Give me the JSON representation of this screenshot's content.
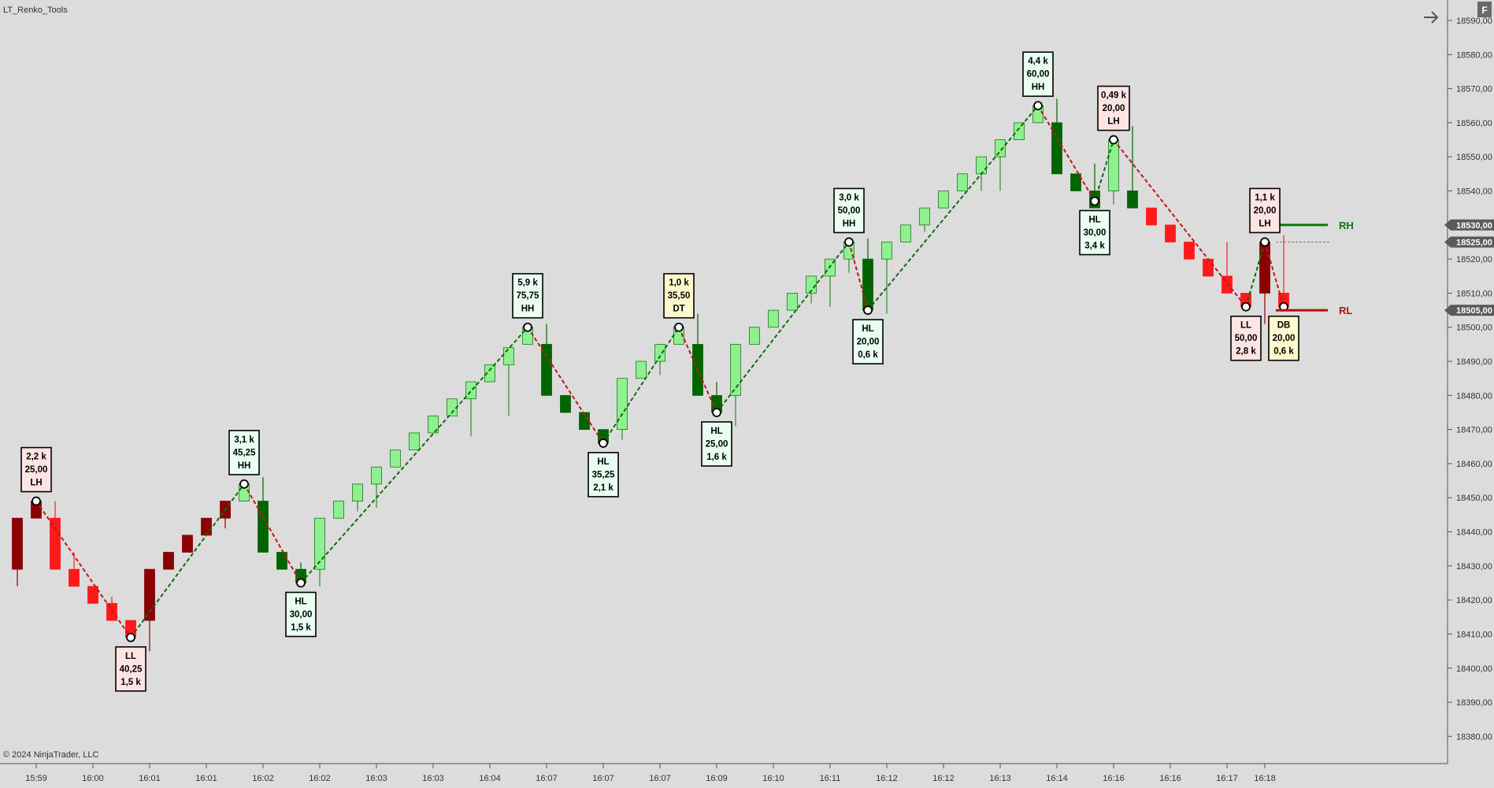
{
  "header": {
    "title": "LT_Renko_Tools",
    "copyright": "© 2024 NinjaTrader, LLC",
    "f_button_label": "F",
    "nav_arrow_icon": "arrow-right-icon"
  },
  "colors": {
    "background": "#dcdcdc",
    "bull_strong": "#006400",
    "bull_light": "#8ef08e",
    "bear_strong": "#8b0000",
    "bear_light": "#ff1a1a",
    "zigzag_up": "#0a6e0a",
    "zigzag_down": "#c01818",
    "label_bull_bg": "#e8fff2",
    "label_bear_bg": "#ffe4e4",
    "label_neutral_bg": "#fffacd",
    "price_badge": "#5a5a5a"
  },
  "chart_data": {
    "type": "candlestick",
    "title": "LT_Renko_Tools",
    "ylim": [
      18372,
      18596
    ],
    "y_ticks": [
      18380,
      18390,
      18400,
      18410,
      18420,
      18430,
      18440,
      18450,
      18460,
      18470,
      18480,
      18490,
      18500,
      18510,
      18520,
      18530,
      18540,
      18550,
      18560,
      18570,
      18580,
      18590
    ],
    "y_tick_labels": [
      "18380,00",
      "18390,00",
      "18400,00",
      "18410,00",
      "18420,00",
      "18430,00",
      "18440,00",
      "18450,00",
      "18460,00",
      "18470,00",
      "18480,00",
      "18490,00",
      "18500,00",
      "18510,00",
      "18520,00",
      "18530,00",
      "18540,00",
      "18550,00",
      "18560,00",
      "18570,00",
      "18580,00",
      "18590,00"
    ],
    "x_tick_labels": [
      "15:59",
      "16:00",
      "16:01",
      "16:01",
      "16:02",
      "16:02",
      "16:03",
      "16:03",
      "16:04",
      "16:07",
      "16:07",
      "16:07",
      "16:09",
      "16:10",
      "16:11",
      "16:12",
      "16:12",
      "16:13",
      "16:14",
      "16:16",
      "16:16",
      "16:17",
      "16:18"
    ],
    "x_tick_bar_index": [
      1,
      4,
      7,
      10,
      13,
      16,
      19,
      22,
      25,
      28,
      31,
      34,
      37,
      40,
      43,
      46,
      49,
      52,
      55,
      58,
      61,
      64,
      66
    ],
    "candles": [
      {
        "o": 18444,
        "c": 18429,
        "h": 18444,
        "l": 18424,
        "s": "bear_strong"
      },
      {
        "o": 18449,
        "c": 18444,
        "h": 18449,
        "l": 18444,
        "s": "bear_strong"
      },
      {
        "o": 18444,
        "c": 18429,
        "h": 18449,
        "l": 18429,
        "s": "bear_light"
      },
      {
        "o": 18429,
        "c": 18424,
        "h": 18434,
        "l": 18424,
        "s": "bear_light"
      },
      {
        "o": 18424,
        "c": 18419,
        "h": 18424,
        "l": 18419,
        "s": "bear_light"
      },
      {
        "o": 18419,
        "c": 18414,
        "h": 18421,
        "l": 18414,
        "s": "bear_light"
      },
      {
        "o": 18414,
        "c": 18409,
        "h": 18414,
        "l": 18409,
        "s": "bear_light"
      },
      {
        "o": 18429,
        "c": 18414,
        "h": 18429,
        "l": 18405,
        "s": "bear_strong"
      },
      {
        "o": 18429,
        "c": 18434,
        "h": 18434,
        "l": 18429,
        "s": "bear_strong"
      },
      {
        "o": 18434,
        "c": 18439,
        "h": 18439,
        "l": 18434,
        "s": "bear_strong"
      },
      {
        "o": 18439,
        "c": 18444,
        "h": 18444,
        "l": 18439,
        "s": "bear_strong"
      },
      {
        "o": 18444,
        "c": 18449,
        "h": 18449,
        "l": 18441,
        "s": "bear_strong"
      },
      {
        "o": 18449,
        "c": 18454,
        "h": 18454,
        "l": 18449,
        "s": "bull_light"
      },
      {
        "o": 18449,
        "c": 18434,
        "h": 18456,
        "l": 18434,
        "s": "bull_strong"
      },
      {
        "o": 18434,
        "c": 18429,
        "h": 18434,
        "l": 18429,
        "s": "bull_strong"
      },
      {
        "o": 18429,
        "c": 18425,
        "h": 18431,
        "l": 18425,
        "s": "bull_strong"
      },
      {
        "o": 18429,
        "c": 18444,
        "h": 18444,
        "l": 18424,
        "s": "bull_light"
      },
      {
        "o": 18444,
        "c": 18449,
        "h": 18449,
        "l": 18444,
        "s": "bull_light"
      },
      {
        "o": 18449,
        "c": 18454,
        "h": 18454,
        "l": 18446,
        "s": "bull_light"
      },
      {
        "o": 18454,
        "c": 18459,
        "h": 18459,
        "l": 18447,
        "s": "bull_light"
      },
      {
        "o": 18459,
        "c": 18464,
        "h": 18464,
        "l": 18459,
        "s": "bull_light"
      },
      {
        "o": 18464,
        "c": 18469,
        "h": 18469,
        "l": 18464,
        "s": "bull_light"
      },
      {
        "o": 18469,
        "c": 18474,
        "h": 18474,
        "l": 18469,
        "s": "bull_light"
      },
      {
        "o": 18474,
        "c": 18479,
        "h": 18479,
        "l": 18474,
        "s": "bull_light"
      },
      {
        "o": 18479,
        "c": 18484,
        "h": 18484,
        "l": 18468,
        "s": "bull_light"
      },
      {
        "o": 18484,
        "c": 18489,
        "h": 18489,
        "l": 18484,
        "s": "bull_light"
      },
      {
        "o": 18489,
        "c": 18494,
        "h": 18494,
        "l": 18474,
        "s": "bull_light"
      },
      {
        "o": 18495,
        "c": 18500,
        "h": 18500,
        "l": 18495,
        "s": "bull_light"
      },
      {
        "o": 18495,
        "c": 18480,
        "h": 18501,
        "l": 18480,
        "s": "bull_strong"
      },
      {
        "o": 18480,
        "c": 18475,
        "h": 18480,
        "l": 18475,
        "s": "bull_strong"
      },
      {
        "o": 18475,
        "c": 18470,
        "h": 18475,
        "l": 18470,
        "s": "bull_strong"
      },
      {
        "o": 18470,
        "c": 18466,
        "h": 18470,
        "l": 18466,
        "s": "bull_strong"
      },
      {
        "o": 18470,
        "c": 18485,
        "h": 18485,
        "l": 18467,
        "s": "bull_light"
      },
      {
        "o": 18485,
        "c": 18490,
        "h": 18490,
        "l": 18485,
        "s": "bull_light"
      },
      {
        "o": 18490,
        "c": 18495,
        "h": 18495,
        "l": 18486,
        "s": "bull_light"
      },
      {
        "o": 18495,
        "c": 18500,
        "h": 18500,
        "l": 18495,
        "s": "bull_light"
      },
      {
        "o": 18495,
        "c": 18480,
        "h": 18504,
        "l": 18480,
        "s": "bull_strong"
      },
      {
        "o": 18480,
        "c": 18475,
        "h": 18484,
        "l": 18475,
        "s": "bull_strong"
      },
      {
        "o": 18480,
        "c": 18495,
        "h": 18495,
        "l": 18471,
        "s": "bull_light"
      },
      {
        "o": 18495,
        "c": 18500,
        "h": 18500,
        "l": 18495,
        "s": "bull_light"
      },
      {
        "o": 18500,
        "c": 18505,
        "h": 18505,
        "l": 18500,
        "s": "bull_light"
      },
      {
        "o": 18505,
        "c": 18510,
        "h": 18510,
        "l": 18505,
        "s": "bull_light"
      },
      {
        "o": 18510,
        "c": 18515,
        "h": 18515,
        "l": 18507,
        "s": "bull_light"
      },
      {
        "o": 18515,
        "c": 18520,
        "h": 18520,
        "l": 18506,
        "s": "bull_light"
      },
      {
        "o": 18520,
        "c": 18525,
        "h": 18525,
        "l": 18516,
        "s": "bull_light"
      },
      {
        "o": 18520,
        "c": 18505,
        "h": 18526,
        "l": 18505,
        "s": "bull_strong"
      },
      {
        "o": 18520,
        "c": 18525,
        "h": 18525,
        "l": 18504,
        "s": "bull_light"
      },
      {
        "o": 18525,
        "c": 18530,
        "h": 18530,
        "l": 18525,
        "s": "bull_light"
      },
      {
        "o": 18530,
        "c": 18535,
        "h": 18535,
        "l": 18528,
        "s": "bull_light"
      },
      {
        "o": 18535,
        "c": 18540,
        "h": 18540,
        "l": 18535,
        "s": "bull_light"
      },
      {
        "o": 18540,
        "c": 18545,
        "h": 18545,
        "l": 18540,
        "s": "bull_light"
      },
      {
        "o": 18545,
        "c": 18550,
        "h": 18550,
        "l": 18540,
        "s": "bull_light"
      },
      {
        "o": 18550,
        "c": 18555,
        "h": 18555,
        "l": 18540,
        "s": "bull_light"
      },
      {
        "o": 18555,
        "c": 18560,
        "h": 18560,
        "l": 18555,
        "s": "bull_light"
      },
      {
        "o": 18560,
        "c": 18565,
        "h": 18565,
        "l": 18560,
        "s": "bull_light"
      },
      {
        "o": 18560,
        "c": 18545,
        "h": 18567,
        "l": 18545,
        "s": "bull_strong"
      },
      {
        "o": 18545,
        "c": 18540,
        "h": 18545,
        "l": 18540,
        "s": "bull_strong"
      },
      {
        "o": 18540,
        "c": 18535,
        "h": 18548,
        "l": 18535,
        "s": "bull_strong"
      },
      {
        "o": 18540,
        "c": 18555,
        "h": 18555,
        "l": 18536,
        "s": "bull_light"
      },
      {
        "o": 18540,
        "c": 18535,
        "h": 18559,
        "l": 18535,
        "s": "bull_strong"
      },
      {
        "o": 18535,
        "c": 18530,
        "h": 18535,
        "l": 18530,
        "s": "bear_light"
      },
      {
        "o": 18530,
        "c": 18525,
        "h": 18530,
        "l": 18525,
        "s": "bear_light"
      },
      {
        "o": 18525,
        "c": 18520,
        "h": 18525,
        "l": 18520,
        "s": "bear_light"
      },
      {
        "o": 18520,
        "c": 18515,
        "h": 18520,
        "l": 18515,
        "s": "bear_light"
      },
      {
        "o": 18515,
        "c": 18510,
        "h": 18525,
        "l": 18510,
        "s": "bear_light"
      },
      {
        "o": 18510,
        "c": 18506,
        "h": 18510,
        "l": 18506,
        "s": "bear_light"
      },
      {
        "o": 18525,
        "c": 18510,
        "h": 18525,
        "l": 18501,
        "s": "bear_strong"
      },
      {
        "o": 18510,
        "c": 18506,
        "h": 18527,
        "l": 18506,
        "s": "bear_light"
      }
    ],
    "zigzag": [
      {
        "i": 1,
        "p": 18449
      },
      {
        "i": 6,
        "p": 18409
      },
      {
        "i": 12,
        "p": 18454
      },
      {
        "i": 15,
        "p": 18425
      },
      {
        "i": 27,
        "p": 18500
      },
      {
        "i": 31,
        "p": 18466
      },
      {
        "i": 35,
        "p": 18500
      },
      {
        "i": 37,
        "p": 18475
      },
      {
        "i": 44,
        "p": 18525
      },
      {
        "i": 45,
        "p": 18505
      },
      {
        "i": 54,
        "p": 18565
      },
      {
        "i": 57,
        "p": 18537
      },
      {
        "i": 58,
        "p": 18555
      },
      {
        "i": 65,
        "p": 18506
      },
      {
        "i": 66,
        "p": 18525
      },
      {
        "i": 67,
        "p": 18506
      }
    ],
    "swing_labels": [
      {
        "i": 1,
        "lines": [
          "2,2 k",
          "25,00",
          "LH"
        ],
        "pos": "above",
        "kind": "bear"
      },
      {
        "i": 6,
        "lines": [
          "LL",
          "40,25",
          "1,5 k"
        ],
        "pos": "below",
        "kind": "bear"
      },
      {
        "i": 12,
        "lines": [
          "3,1 k",
          "45,25",
          "HH"
        ],
        "pos": "above",
        "kind": "bull"
      },
      {
        "i": 15,
        "lines": [
          "HL",
          "30,00",
          "1,5 k"
        ],
        "pos": "below",
        "kind": "bull"
      },
      {
        "i": 27,
        "lines": [
          "5,9 k",
          "75,75",
          "HH"
        ],
        "pos": "above",
        "kind": "bull"
      },
      {
        "i": 31,
        "lines": [
          "HL",
          "35,25",
          "2,1 k"
        ],
        "pos": "below",
        "kind": "bull"
      },
      {
        "i": 35,
        "lines": [
          "1,0 k",
          "35,50",
          "DT"
        ],
        "pos": "above",
        "kind": "neutral"
      },
      {
        "i": 37,
        "lines": [
          "HL",
          "25,00",
          "1,6 k"
        ],
        "pos": "below",
        "kind": "bull"
      },
      {
        "i": 44,
        "lines": [
          "3,0 k",
          "50,00",
          "HH"
        ],
        "pos": "above",
        "kind": "bull"
      },
      {
        "i": 45,
        "lines": [
          "HL",
          "20,00",
          "0,6 k"
        ],
        "pos": "below",
        "kind": "bull"
      },
      {
        "i": 54,
        "lines": [
          "4,4 k",
          "60,00",
          "HH"
        ],
        "pos": "above",
        "kind": "bull"
      },
      {
        "i": 57,
        "lines": [
          "HL",
          "30,00",
          "3,4 k"
        ],
        "pos": "below",
        "kind": "bull"
      },
      {
        "i": 58,
        "lines": [
          "0,49 k",
          "20,00",
          "LH"
        ],
        "pos": "above",
        "kind": "bear"
      },
      {
        "i": 65,
        "lines": [
          "LL",
          "50,00",
          "2,8 k"
        ],
        "pos": "below",
        "kind": "bear"
      },
      {
        "i": 66,
        "lines": [
          "1,1 k",
          "20,00",
          "LH"
        ],
        "pos": "above",
        "kind": "bear"
      },
      {
        "i": 67,
        "lines": [
          "DB",
          "20,00",
          "0,6 k"
        ],
        "pos": "below",
        "kind": "neutral"
      }
    ],
    "levels": [
      {
        "name": "RH",
        "price": 18530,
        "color": "#0a7a0a"
      },
      {
        "name": "RL",
        "price": 18505,
        "color": "#b01010"
      }
    ],
    "price_badges": [
      {
        "value": 18530,
        "label": "18530,00"
      },
      {
        "value": 18525,
        "label": "18525,00"
      },
      {
        "value": 18505,
        "label": "18505,00"
      }
    ],
    "current_price_line": 18525,
    "grid": false
  }
}
